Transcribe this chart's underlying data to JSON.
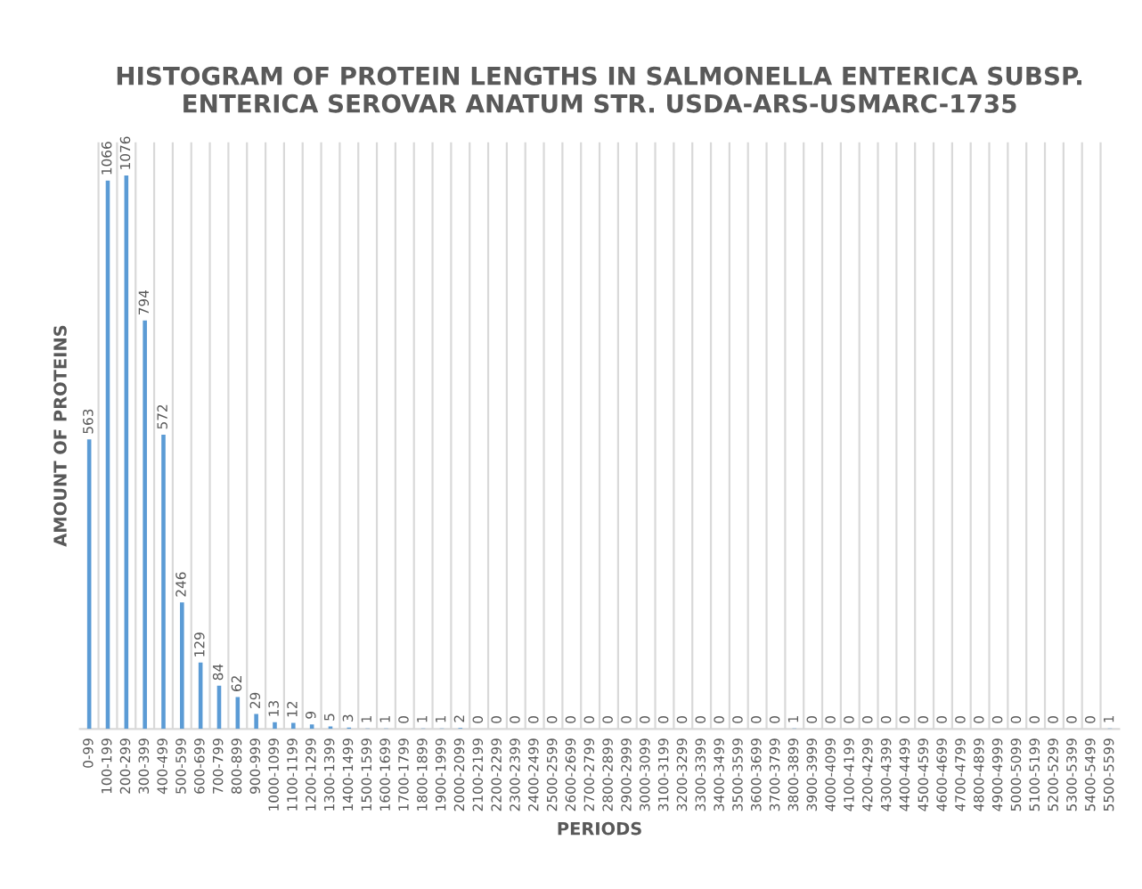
{
  "chart_data": {
    "type": "bar",
    "title": "HISTOGRAM OF PROTEIN LENGTHS IN SALMONELLA ENTERICA SUBSP.\nENTERICA SEROVAR ANATUM STR. USDA-ARS-USMARC-1735",
    "xlabel": "PERIODS",
    "ylabel": "AMOUNT OF PROTEINS",
    "categories": [
      "0-99",
      "100-199",
      "200-299",
      "300-399",
      "400-499",
      "500-599",
      "600-699",
      "700-799",
      "800-899",
      "900-999",
      "1000-1099",
      "1100-1199",
      "1200-1299",
      "1300-1399",
      "1400-1499",
      "1500-1599",
      "1600-1699",
      "1700-1799",
      "1800-1899",
      "1900-1999",
      "2000-2099",
      "2100-2199",
      "2200-2299",
      "2300-2399",
      "2400-2499",
      "2500-2599",
      "2600-2699",
      "2700-2799",
      "2800-2899",
      "2900-2999",
      "3000-3099",
      "3100-3199",
      "3200-3299",
      "3300-3399",
      "3400-3499",
      "3500-3599",
      "3600-3699",
      "3700-3799",
      "3800-3899",
      "3900-3999",
      "4000-4099",
      "4100-4199",
      "4200-4299",
      "4300-4399",
      "4400-4499",
      "4500-4599",
      "4600-4699",
      "4700-4799",
      "4800-4899",
      "4900-4999",
      "5000-5099",
      "5100-5199",
      "5200-5299",
      "5300-5399",
      "5400-5499",
      "5500-5599"
    ],
    "values": [
      563,
      1066,
      1076,
      794,
      572,
      246,
      129,
      84,
      62,
      29,
      13,
      12,
      9,
      5,
      3,
      1,
      1,
      0,
      1,
      1,
      2,
      0,
      0,
      0,
      0,
      0,
      0,
      0,
      0,
      0,
      0,
      0,
      0,
      0,
      0,
      0,
      0,
      0,
      1,
      0,
      0,
      0,
      0,
      0,
      0,
      0,
      0,
      0,
      0,
      0,
      0,
      0,
      0,
      0,
      0,
      1
    ],
    "color": "#5b9bd5",
    "data_labels": true,
    "grid": "x",
    "legend": false
  }
}
